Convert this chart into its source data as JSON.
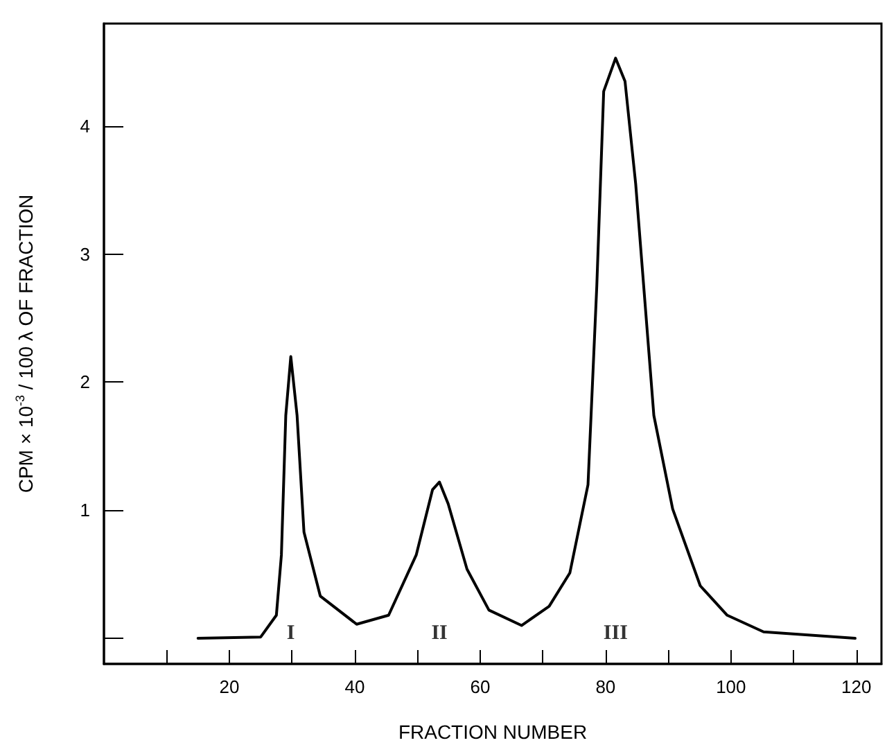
{
  "chart_data": {
    "type": "line",
    "xlabel": "FRACTION NUMBER",
    "ylabel": "CPM × 10$^{-3}$ / 100 λ OF FRACTION",
    "x": [
      15,
      25,
      27.5,
      28.3,
      29,
      29.8,
      30.8,
      31.9,
      34.5,
      40.3,
      45.4,
      49.8,
      52.4,
      53.5,
      54.9,
      57.9,
      61.4,
      66.6,
      71,
      74.3,
      77.2,
      78.6,
      79.7,
      81.6,
      83.1,
      84.8,
      87.7,
      90.7,
      95.1,
      99.4,
      105.2,
      119.8
    ],
    "series": [
      {
        "color": "#000000",
        "values": [
          0.0,
          0.01,
          0.18,
          0.65,
          1.74,
          2.2,
          1.74,
          0.83,
          0.33,
          0.11,
          0.18,
          0.65,
          1.16,
          1.22,
          1.05,
          0.54,
          0.22,
          0.1,
          0.25,
          0.51,
          1.2,
          2.75,
          4.27,
          4.53,
          4.35,
          3.55,
          1.74,
          1.01,
          0.41,
          0.18,
          0.05,
          0.0
        ]
      }
    ],
    "xlim": [
      0,
      124
    ],
    "xticks": [
      {
        "value": 10,
        "label": null
      },
      20,
      {
        "value": 30,
        "label": null
      },
      40,
      {
        "value": 50,
        "label": null
      },
      60,
      {
        "value": 70,
        "label": null
      },
      80,
      {
        "value": 90,
        "label": null
      },
      100,
      {
        "value": 110,
        "label": null
      },
      120
    ],
    "ylim": [
      -0.2,
      4.8
    ],
    "yticks": [
      {
        "value": 0,
        "label": null
      },
      1,
      2,
      3,
      4
    ],
    "annotations": [
      "I",
      "II",
      "III"
    ],
    "grid": false,
    "marker": "none",
    "line_style": "solid"
  }
}
